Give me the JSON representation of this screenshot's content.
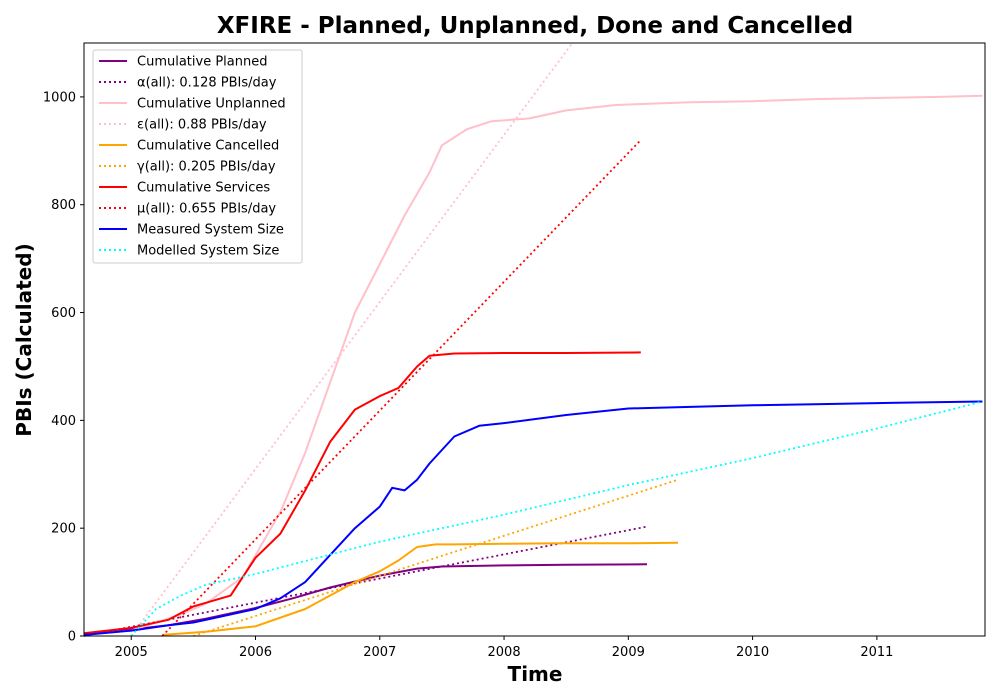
{
  "chart_data": {
    "type": "line",
    "title": "XFIRE - Planned, Unplanned, Done  and Cancelled",
    "xlabel": "Time",
    "ylabel": "PBIs (Calculated)",
    "xlim": [
      2004.62,
      2011.87
    ],
    "ylim": [
      0,
      1100
    ],
    "xticks": [
      2005,
      2006,
      2007,
      2008,
      2009,
      2010,
      2011
    ],
    "yticks": [
      0,
      200,
      400,
      600,
      800,
      1000
    ],
    "grid": false,
    "legend_position": "top-left",
    "series": [
      {
        "name": "Cumulative Planned",
        "color": "#800080",
        "style": "solid",
        "x": [
          2004.62,
          2005.0,
          2005.3,
          2005.6,
          2006.0,
          2006.3,
          2006.6,
          2007.0,
          2007.3,
          2007.5,
          2008.0,
          2008.5,
          2009.15
        ],
        "y": [
          3,
          12,
          20,
          32,
          52,
          70,
          90,
          112,
          125,
          129,
          131,
          132,
          133
        ]
      },
      {
        "name": "α(all): 0.128 PBIs/day",
        "color": "#800080",
        "style": "dotted",
        "x": [
          2004.62,
          2009.15
        ],
        "y": [
          0,
          203
        ]
      },
      {
        "name": "Cumulative Unplanned",
        "color": "#ffc0cb",
        "style": "solid",
        "x": [
          2004.62,
          2005.0,
          2005.4,
          2005.6,
          2005.9,
          2006.2,
          2006.4,
          2006.6,
          2006.8,
          2007.0,
          2007.2,
          2007.4,
          2007.5,
          2007.7,
          2007.9,
          2008.2,
          2008.5,
          2008.9,
          2009.5,
          2010.0,
          2010.5,
          2011.0,
          2011.5,
          2011.85
        ],
        "y": [
          2,
          10,
          40,
          60,
          110,
          230,
          340,
          470,
          600,
          690,
          780,
          860,
          910,
          940,
          955,
          960,
          975,
          985,
          990,
          992,
          996,
          998,
          1000,
          1002
        ]
      },
      {
        "name": "ε(all): 0.88 PBIs/day",
        "color": "#ffc0cb",
        "style": "dotted",
        "x": [
          2005.0,
          2008.55
        ],
        "y": [
          0,
          1100
        ]
      },
      {
        "name": "Cumulative Cancelled",
        "color": "#ffa500",
        "style": "solid",
        "x": [
          2005.25,
          2005.6,
          2006.0,
          2006.4,
          2006.8,
          2007.0,
          2007.15,
          2007.3,
          2007.45,
          2007.6,
          2008.0,
          2008.5,
          2009.0,
          2009.4
        ],
        "y": [
          2,
          8,
          18,
          50,
          100,
          120,
          140,
          165,
          170,
          170,
          171,
          172,
          172,
          173
        ]
      },
      {
        "name": "γ(all): 0.205 PBIs/day",
        "color": "#ffa500",
        "style": "dotted",
        "x": [
          2005.5,
          2009.4
        ],
        "y": [
          0,
          290
        ]
      },
      {
        "name": "Cumulative Services",
        "color": "#ff0000",
        "style": "solid",
        "x": [
          2004.62,
          2005.0,
          2005.3,
          2005.5,
          2005.8,
          2006.0,
          2006.2,
          2006.4,
          2006.6,
          2006.8,
          2007.0,
          2007.15,
          2007.3,
          2007.4,
          2007.6,
          2008.0,
          2008.5,
          2009.1
        ],
        "y": [
          5,
          15,
          30,
          55,
          75,
          145,
          190,
          270,
          360,
          420,
          445,
          460,
          500,
          520,
          524,
          525,
          525,
          526
        ]
      },
      {
        "name": "μ(all): 0.655 PBIs/day",
        "color": "#ff0000",
        "style": "dotted",
        "x": [
          2005.25,
          2009.1
        ],
        "y": [
          0,
          920
        ]
      },
      {
        "name": "Measured System Size",
        "color": "#0000ff",
        "style": "solid",
        "x": [
          2004.62,
          2005.0,
          2005.3,
          2005.5,
          2005.7,
          2006.0,
          2006.2,
          2006.4,
          2006.6,
          2006.8,
          2007.0,
          2007.1,
          2007.2,
          2007.3,
          2007.4,
          2007.6,
          2007.8,
          2008.0,
          2008.5,
          2009.0,
          2009.5,
          2010.0,
          2010.5,
          2011.0,
          2011.85
        ],
        "y": [
          2,
          10,
          20,
          25,
          35,
          50,
          70,
          100,
          150,
          200,
          240,
          275,
          270,
          290,
          320,
          370,
          390,
          395,
          410,
          422,
          425,
          428,
          430,
          432,
          435
        ]
      },
      {
        "name": "Modelled System Size",
        "color": "#00ffff",
        "style": "dotted",
        "x": [
          2005.0,
          2005.2,
          2005.4,
          2005.6,
          2006.0,
          2006.5,
          2007.0,
          2007.5,
          2008.0,
          2009.0,
          2010.0,
          2011.0,
          2011.85
        ],
        "y": [
          0,
          50,
          75,
          95,
          115,
          145,
          175,
          200,
          225,
          280,
          330,
          385,
          435
        ]
      }
    ]
  }
}
